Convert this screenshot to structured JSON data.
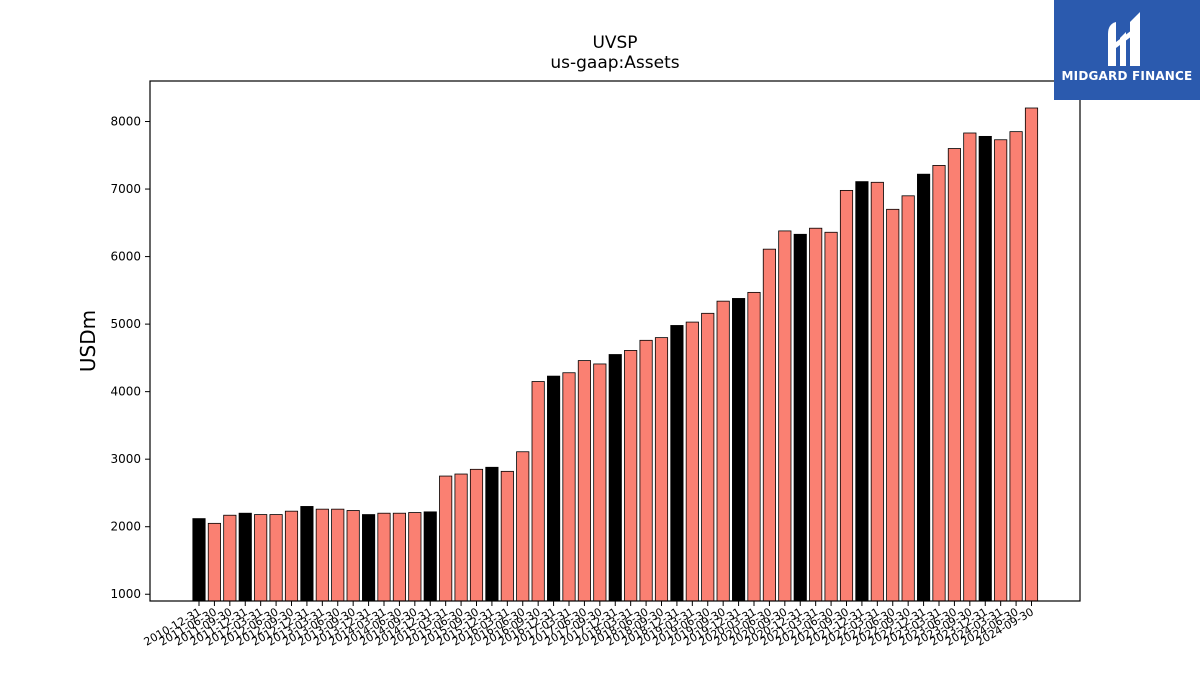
{
  "brand": {
    "name": "MIDGARD FINANCE",
    "bg_color": "#2b5aae"
  },
  "colors": {
    "bar_default": "#fa8072",
    "bar_highlight": "#000000"
  },
  "chart_data": {
    "type": "bar",
    "title": "UVSP",
    "subtitle": "us-gaap:Assets",
    "xlabel": "",
    "ylabel": "USDm",
    "ylim": [
      900,
      8600
    ],
    "yticks": [
      1000,
      2000,
      3000,
      4000,
      5000,
      6000,
      7000,
      8000
    ],
    "grid": false,
    "categories": [
      "2010-12-31",
      "2011-06-30",
      "2011-09-30",
      "2011-12-31",
      "2012-03-31",
      "2012-06-30",
      "2012-09-30",
      "2012-12-31",
      "2013-03-31",
      "2013-06-30",
      "2013-09-30",
      "2013-12-31",
      "2014-03-31",
      "2014-06-30",
      "2014-09-30",
      "2014-12-31",
      "2015-03-31",
      "2015-06-30",
      "2015-09-30",
      "2015-12-31",
      "2016-03-31",
      "2016-06-30",
      "2016-09-30",
      "2016-12-31",
      "2017-03-31",
      "2017-06-30",
      "2017-09-30",
      "2017-12-31",
      "2018-03-31",
      "2018-06-30",
      "2018-09-30",
      "2018-12-31",
      "2019-03-31",
      "2019-06-30",
      "2019-09-30",
      "2019-12-31",
      "2020-03-31",
      "2020-06-30",
      "2020-09-30",
      "2020-12-31",
      "2021-03-31",
      "2021-06-30",
      "2021-09-30",
      "2021-12-31",
      "2022-03-31",
      "2022-06-30",
      "2022-09-30",
      "2022-12-31",
      "2023-03-31",
      "2023-06-30",
      "2023-09-30",
      "2023-12-31",
      "2024-03-31",
      "2024-06-30",
      "2024-09-30"
    ],
    "values": [
      2120,
      2050,
      2170,
      2200,
      2180,
      2180,
      2230,
      2300,
      2260,
      2260,
      2240,
      2180,
      2200,
      2200,
      2210,
      2220,
      2750,
      2780,
      2850,
      2880,
      2820,
      3110,
      4150,
      4230,
      4280,
      4460,
      4410,
      4550,
      4610,
      4760,
      4800,
      4980,
      5030,
      5160,
      5340,
      5380,
      5470,
      6110,
      6380,
      6330,
      6420,
      6360,
      6980,
      7110,
      7100,
      6700,
      6900,
      7220,
      7350,
      7600,
      7830,
      7780,
      7730,
      7850,
      8200
    ],
    "highlight_suffix": "12-31"
  }
}
